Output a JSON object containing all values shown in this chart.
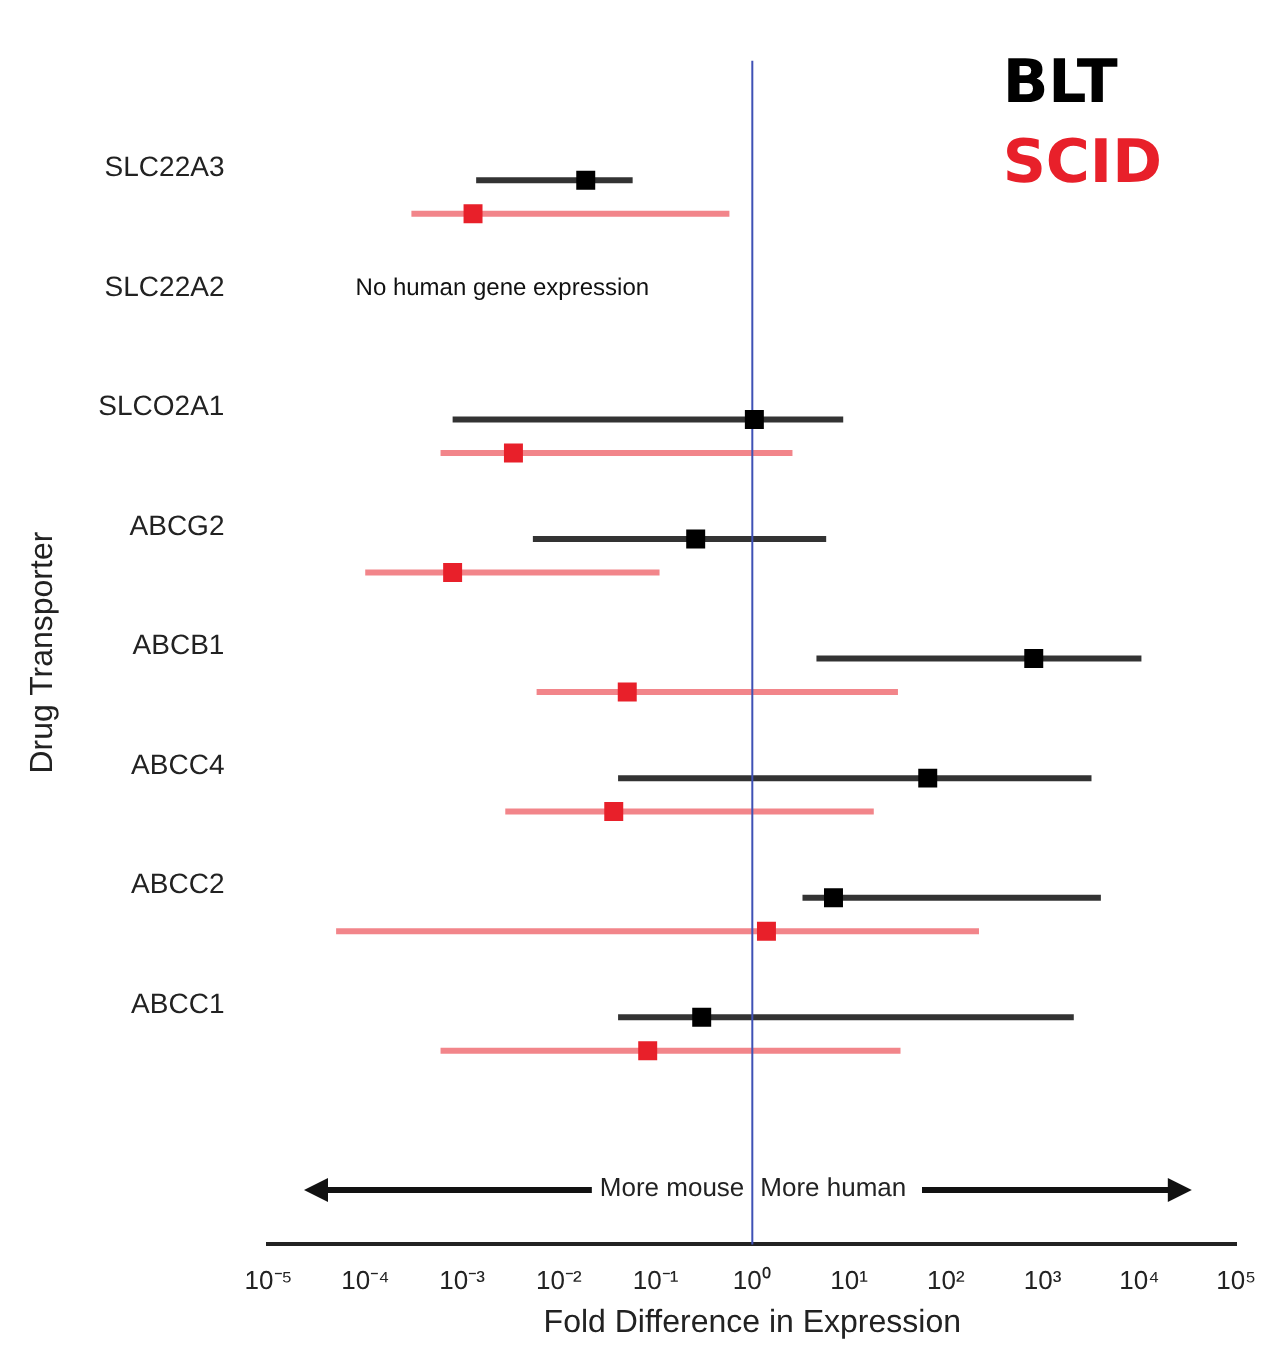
{
  "chart_data": {
    "type": "scatter",
    "orientation": "horizontal",
    "xlabel": "Fold Difference in Expression",
    "ylabel": "Drug Transporter",
    "categories": [
      "SLC22A3",
      "SLC22A2",
      "SLCO2A1",
      "ABCG2",
      "ABCB1",
      "ABCC4",
      "ABCC2",
      "ABCC1"
    ],
    "series": [
      {
        "name": "BLT",
        "color": "#000000",
        "values": [
          0.019,
          null,
          1.05,
          0.26,
          810,
          65,
          6.9,
          0.3
        ],
        "errors": [
          [
            0.0014,
            0.058
          ],
          null,
          [
            0.0008,
            8.7
          ],
          [
            0.0054,
            5.8
          ],
          [
            4.6,
            10500
          ],
          [
            0.041,
            3200
          ],
          [
            3.3,
            4000
          ],
          [
            0.041,
            2100
          ]
        ]
      },
      {
        "name": "SCID",
        "color": "#e8202a",
        "values": [
          0.0013,
          null,
          0.0034,
          0.0008,
          0.051,
          0.037,
          1.4,
          0.083
        ],
        "errors": [
          [
            0.0003,
            0.58
          ],
          null,
          [
            0.0006,
            2.6
          ],
          [
            0.0001,
            0.11
          ],
          [
            0.0059,
            32
          ],
          [
            0.0028,
            18
          ],
          [
            5e-05,
            220
          ],
          [
            0.0006,
            34
          ]
        ]
      }
    ],
    "log": "x",
    "xlim": [
      1e-05,
      100000
    ],
    "xticks": [
      {
        "value": 1e-05,
        "label": "10⁻⁵"
      },
      {
        "value": 0.0001,
        "label": "10⁻⁴"
      },
      {
        "value": 0.001,
        "label": "10⁻³"
      },
      {
        "value": 0.01,
        "label": "10⁻²"
      },
      {
        "value": 0.1,
        "label": "10⁻¹"
      },
      {
        "value": 1,
        "label": "10⁰"
      },
      {
        "value": 10,
        "label": "10¹"
      },
      {
        "value": 100,
        "label": "10²"
      },
      {
        "value": 1000,
        "label": "10³"
      },
      {
        "value": 10000,
        "label": "10⁴"
      },
      {
        "value": 100000,
        "label": "10⁵"
      }
    ],
    "ref_lines": [
      {
        "axis": "x",
        "value": 1,
        "color": "#3f51b5"
      }
    ],
    "annotations": [
      "No human gene expression",
      "More mouse",
      "More human"
    ],
    "marker": "square",
    "grid": false,
    "legend": "top right"
  }
}
